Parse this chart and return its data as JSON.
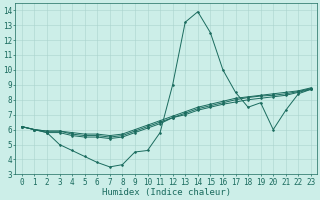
{
  "xlabel": "Humidex (Indice chaleur)",
  "bg_color": "#cceee8",
  "grid_color": "#aad4ce",
  "line_color": "#1a6b5e",
  "xlim": [
    -0.5,
    23.5
  ],
  "ylim": [
    3,
    14.5
  ],
  "xticks": [
    0,
    1,
    2,
    3,
    4,
    5,
    6,
    7,
    8,
    9,
    10,
    11,
    12,
    13,
    14,
    15,
    16,
    17,
    18,
    19,
    20,
    21,
    22,
    23
  ],
  "yticks": [
    3,
    4,
    5,
    6,
    7,
    8,
    9,
    10,
    11,
    12,
    13,
    14
  ],
  "lines": [
    {
      "x": [
        0,
        1,
        2,
        3,
        4,
        5,
        6,
        7,
        8,
        9,
        10,
        11,
        12,
        13,
        14,
        15,
        16,
        17,
        18,
        19,
        20,
        21,
        22,
        23
      ],
      "y": [
        6.2,
        6.0,
        5.8,
        5.0,
        4.6,
        4.2,
        3.8,
        3.5,
        3.65,
        4.5,
        4.6,
        5.8,
        9.0,
        13.2,
        13.9,
        12.5,
        10.0,
        8.5,
        7.5,
        7.8,
        6.0,
        7.3,
        8.4,
        8.7
      ]
    },
    {
      "x": [
        0,
        1,
        2,
        3,
        4,
        5,
        6,
        7,
        8,
        9,
        10,
        11,
        12,
        13,
        14,
        15,
        16,
        17,
        18,
        19,
        20,
        21,
        22,
        23
      ],
      "y": [
        6.2,
        6.0,
        5.8,
        5.8,
        5.6,
        5.5,
        5.5,
        5.4,
        5.5,
        5.8,
        6.1,
        6.4,
        6.8,
        7.0,
        7.3,
        7.5,
        7.7,
        7.85,
        8.0,
        8.1,
        8.2,
        8.3,
        8.5,
        8.7
      ]
    },
    {
      "x": [
        0,
        1,
        2,
        3,
        4,
        5,
        6,
        7,
        8,
        9,
        10,
        11,
        12,
        13,
        14,
        15,
        16,
        17,
        18,
        19,
        20,
        21,
        22,
        23
      ],
      "y": [
        6.2,
        6.0,
        5.9,
        5.9,
        5.7,
        5.6,
        5.6,
        5.5,
        5.6,
        5.9,
        6.2,
        6.5,
        6.8,
        7.1,
        7.4,
        7.6,
        7.8,
        8.0,
        8.15,
        8.25,
        8.3,
        8.4,
        8.55,
        8.75
      ]
    },
    {
      "x": [
        0,
        1,
        2,
        3,
        4,
        5,
        6,
        7,
        8,
        9,
        10,
        11,
        12,
        13,
        14,
        15,
        16,
        17,
        18,
        19,
        20,
        21,
        22,
        23
      ],
      "y": [
        6.2,
        6.0,
        5.9,
        5.9,
        5.8,
        5.7,
        5.7,
        5.6,
        5.7,
        6.0,
        6.3,
        6.6,
        6.9,
        7.2,
        7.5,
        7.7,
        7.9,
        8.1,
        8.2,
        8.3,
        8.4,
        8.5,
        8.6,
        8.8
      ]
    }
  ],
  "tick_fontsize": 5.5,
  "label_fontsize": 6.5
}
